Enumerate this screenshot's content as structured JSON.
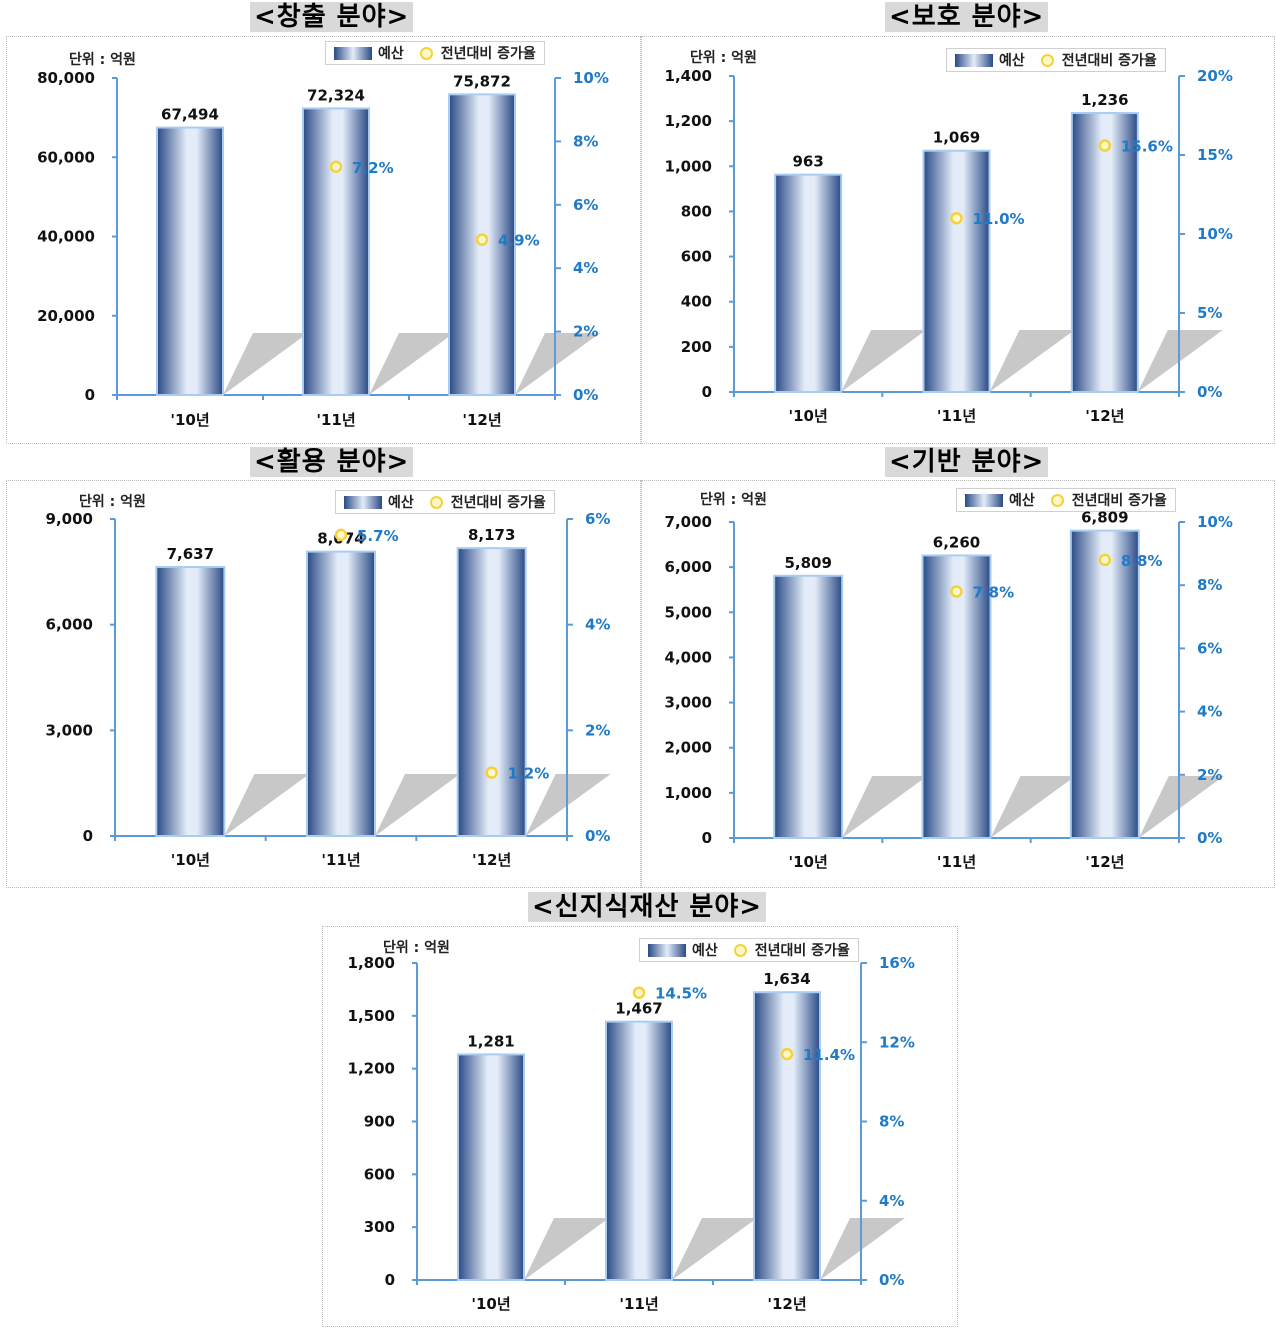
{
  "legend": {
    "bar_label": "예산",
    "rate_label": "전년대비 증가율"
  },
  "unit_label": "단위 : 억원",
  "colors": {
    "bar_dark": "#2a4a86",
    "bar_light": "#e3ecf8",
    "axis": "#5b9bd5",
    "rate_text": "#1f7ac8",
    "marker": "#f5d23c"
  },
  "chart_data": [
    {
      "type": "bar",
      "title": "<창출 분야>",
      "categories": [
        "'10년",
        "'11년",
        "'12년"
      ],
      "values": [
        67494,
        72324,
        75872
      ],
      "value_labels": [
        "67,494",
        "72,324",
        "75,872"
      ],
      "rates": [
        null,
        7.2,
        4.9
      ],
      "rate_labels": [
        "",
        "7.2%",
        "4.9%"
      ],
      "ylim": [
        0,
        80000
      ],
      "yticks": [
        "0",
        "20,000",
        "40,000",
        "60,000",
        "80,000"
      ],
      "y2lim": [
        0,
        10
      ],
      "y2ticks": [
        "0%",
        "2%",
        "4%",
        "6%",
        "8%",
        "10%"
      ]
    },
    {
      "type": "bar",
      "title": "<보호 분야>",
      "categories": [
        "'10년",
        "'11년",
        "'12년"
      ],
      "values": [
        963,
        1069,
        1236
      ],
      "value_labels": [
        "963",
        "1,069",
        "1,236"
      ],
      "rates": [
        null,
        11.0,
        15.6
      ],
      "rate_labels": [
        "",
        "11.0%",
        "15.6%"
      ],
      "ylim": [
        0,
        1400
      ],
      "yticks": [
        "0",
        "200",
        "400",
        "600",
        "800",
        "1,000",
        "1,200",
        "1,400"
      ],
      "y2lim": [
        0,
        20
      ],
      "y2ticks": [
        "0%",
        "5%",
        "10%",
        "15%",
        "20%"
      ]
    },
    {
      "type": "bar",
      "title": "<활용 분야>",
      "categories": [
        "'10년",
        "'11년",
        "'12년"
      ],
      "values": [
        7637,
        8074,
        8173
      ],
      "value_labels": [
        "7,637",
        "8,074",
        "8,173"
      ],
      "rates": [
        null,
        5.7,
        1.2
      ],
      "rate_labels": [
        "",
        "5.7%",
        "1.2%"
      ],
      "ylim": [
        0,
        9000
      ],
      "yticks": [
        "0",
        "3,000",
        "6,000",
        "9,000"
      ],
      "y2lim": [
        0,
        6
      ],
      "y2ticks": [
        "0%",
        "2%",
        "4%",
        "6%"
      ]
    },
    {
      "type": "bar",
      "title": "<기반 분야>",
      "categories": [
        "'10년",
        "'11년",
        "'12년"
      ],
      "values": [
        5809,
        6260,
        6809
      ],
      "value_labels": [
        "5,809",
        "6,260",
        "6,809"
      ],
      "rates": [
        null,
        7.8,
        8.8
      ],
      "rate_labels": [
        "",
        "7.8%",
        "8.8%"
      ],
      "ylim": [
        0,
        7000
      ],
      "yticks": [
        "0",
        "1,000",
        "2,000",
        "3,000",
        "4,000",
        "5,000",
        "6,000",
        "7,000"
      ],
      "y2lim": [
        0,
        10
      ],
      "y2ticks": [
        "0%",
        "2%",
        "4%",
        "6%",
        "8%",
        "10%"
      ]
    },
    {
      "type": "bar",
      "title": "<신지식재산 분야>",
      "categories": [
        "'10년",
        "'11년",
        "'12년"
      ],
      "values": [
        1281,
        1467,
        1634
      ],
      "value_labels": [
        "1,281",
        "1,467",
        "1,634"
      ],
      "rates": [
        null,
        14.5,
        11.4
      ],
      "rate_labels": [
        "",
        "14.5%",
        "11.4%"
      ],
      "ylim": [
        0,
        1800
      ],
      "yticks": [
        "0",
        "300",
        "600",
        "900",
        "1,200",
        "1,500",
        "1,800"
      ],
      "y2lim": [
        0,
        16
      ],
      "y2ticks": [
        "0%",
        "4%",
        "8%",
        "12%",
        "16%"
      ]
    }
  ]
}
